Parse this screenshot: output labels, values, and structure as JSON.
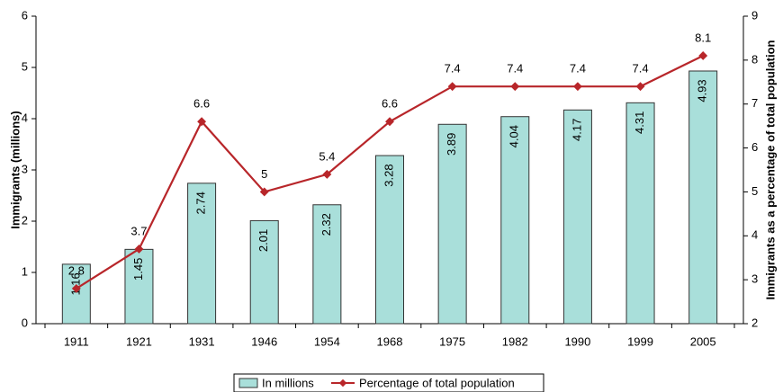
{
  "chart_data": {
    "type": "bar_line",
    "categories": [
      "1911",
      "1921",
      "1931",
      "1946",
      "1954",
      "1968",
      "1975",
      "1982",
      "1990",
      "1999",
      "2005"
    ],
    "series": [
      {
        "name": "In millions",
        "type": "bar",
        "color": "#a9dfda",
        "values": [
          1.16,
          1.45,
          2.74,
          2.01,
          2.32,
          3.28,
          3.89,
          4.04,
          4.17,
          4.31,
          4.93
        ]
      },
      {
        "name": "Percentage of total population",
        "type": "line",
        "axis": "y2",
        "color": "#b8262a",
        "values": [
          2.8,
          3.7,
          6.6,
          5,
          5.4,
          6.6,
          7.4,
          7.4,
          7.4,
          7.4,
          8.1
        ]
      }
    ],
    "ylabel": "Immigrants (millions)",
    "y2label": "Immigrants as a percentage of total population",
    "ylim": [
      0,
      6
    ],
    "yticks": [
      0,
      1,
      2,
      3,
      4,
      5,
      6
    ],
    "y2lim": [
      2,
      9
    ],
    "y2ticks": [
      2,
      3,
      4,
      5,
      6,
      7,
      8,
      9
    ],
    "legend": "bottom",
    "grid": false
  }
}
